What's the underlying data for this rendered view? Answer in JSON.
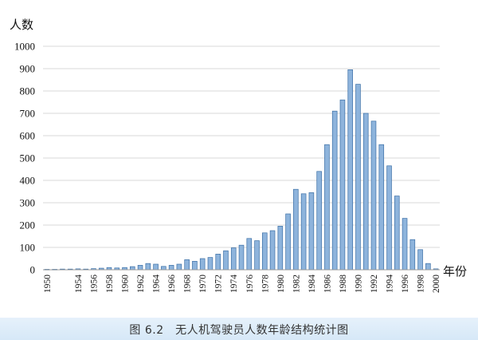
{
  "caption": "图 6.2　无人机驾驶员人数年龄结构统计图",
  "chart_data": {
    "type": "bar",
    "title": "",
    "ylabel": "人数",
    "xlabel": "年份",
    "ylim": [
      0,
      1000
    ],
    "yticks": [
      0,
      100,
      200,
      300,
      400,
      500,
      600,
      700,
      800,
      900,
      1000
    ],
    "grid": true,
    "bar_color": "#8eb4dc",
    "bar_edge_color": "#3a6ea5",
    "categories": [
      "1950",
      "1951",
      "1952",
      "1953",
      "1954",
      "1955",
      "1956",
      "1957",
      "1958",
      "1959",
      "1960",
      "1961",
      "1962",
      "1963",
      "1964",
      "1965",
      "1966",
      "1967",
      "1968",
      "1969",
      "1970",
      "1971",
      "1972",
      "1973",
      "1974",
      "1975",
      "1976",
      "1977",
      "1978",
      "1979",
      "1980",
      "1981",
      "1982",
      "1983",
      "1984",
      "1985",
      "1986",
      "1987",
      "1988",
      "1989",
      "1990",
      "1991",
      "1992",
      "1993",
      "1994",
      "1995",
      "1996",
      "1997",
      "1998",
      "1999",
      "2000"
    ],
    "xtick_labels": [
      "1950",
      "1954",
      "1956",
      "1958",
      "1960",
      "1962",
      "1964",
      "1966",
      "1968",
      "1970",
      "1972",
      "1974",
      "1976",
      "1978",
      "1980",
      "1982",
      "1984",
      "1986",
      "1988",
      "1990",
      "1992",
      "1994",
      "1996",
      "1998",
      "2000"
    ],
    "values": [
      2,
      2,
      3,
      3,
      4,
      3,
      5,
      7,
      10,
      8,
      10,
      14,
      20,
      28,
      25,
      15,
      20,
      25,
      45,
      38,
      50,
      55,
      70,
      85,
      98,
      110,
      140,
      130,
      165,
      175,
      195,
      250,
      360,
      340,
      345,
      440,
      560,
      710,
      760,
      895,
      830,
      700,
      665,
      560,
      465,
      330,
      230,
      135,
      90,
      28,
      4
    ]
  }
}
